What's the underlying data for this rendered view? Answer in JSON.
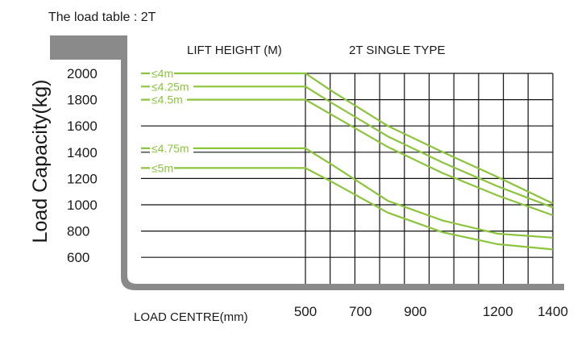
{
  "chart_data": {
    "type": "line",
    "title": "The load table : 2T",
    "header_left": "LIFT HEIGHT (M)",
    "header_right": "2T SINGLE TYPE",
    "xlabel": "LOAD  CENTRE(mm)",
    "ylabel": "Load Capacity(kg)",
    "x_ticks": [
      500,
      700,
      900,
      1200,
      1400
    ],
    "y_ticks": [
      2000,
      1800,
      1600,
      1400,
      1200,
      1000,
      800,
      600
    ],
    "xlim": [
      500,
      1400
    ],
    "ylim": [
      600,
      2000
    ],
    "grid": true,
    "line_color": "#8cc43c",
    "series": [
      {
        "name": "≤4m",
        "x": [
          500,
          600,
          800,
          1000,
          1200,
          1400
        ],
        "values": [
          2000,
          1860,
          1600,
          1400,
          1210,
          1010
        ]
      },
      {
        "name": "≤4.25m",
        "x": [
          500,
          600,
          800,
          1000,
          1200,
          1400
        ],
        "values": [
          1900,
          1770,
          1520,
          1320,
          1140,
          980
        ]
      },
      {
        "name": "≤4.5m",
        "x": [
          500,
          600,
          800,
          1000,
          1200,
          1400
        ],
        "values": [
          1800,
          1680,
          1440,
          1240,
          1070,
          920
        ]
      },
      {
        "name": "≤4.75m",
        "x": [
          500,
          600,
          800,
          1000,
          1200,
          1400
        ],
        "values": [
          1430,
          1300,
          1030,
          880,
          780,
          750
        ]
      },
      {
        "name": "≤5m",
        "x": [
          500,
          600,
          800,
          1000,
          1200,
          1400
        ],
        "values": [
          1280,
          1170,
          940,
          790,
          700,
          660
        ]
      }
    ]
  }
}
